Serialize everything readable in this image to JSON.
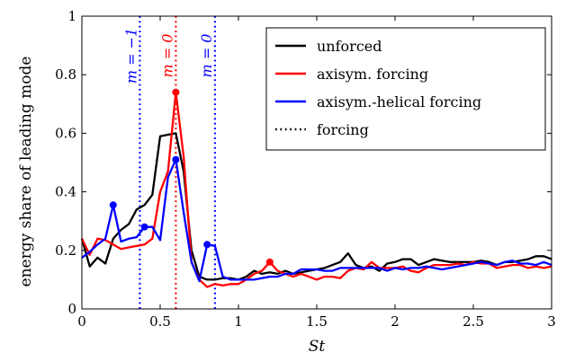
{
  "chart_data": {
    "type": "line",
    "xlabel": "St",
    "ylabel": "energy share of leading mode",
    "xlim": [
      0,
      3
    ],
    "ylim": [
      0,
      1
    ],
    "xticks": [
      0,
      0.5,
      1,
      1.5,
      2,
      2.5,
      3
    ],
    "xtick_labels": [
      "0",
      "0.5",
      "1",
      "1.5",
      "2",
      "2.5",
      "3"
    ],
    "yticks": [
      0,
      0.2,
      0.4,
      0.6,
      0.8,
      1
    ],
    "ytick_labels": [
      "0",
      "0.2",
      "0.4",
      "0.6",
      "0.8",
      "1"
    ],
    "grid": false,
    "legend_position": "top-right",
    "colors": {
      "unforced": "#000000",
      "axisym": "#ff0000",
      "helical": "#0000ff",
      "forcing_legend": "#000000"
    },
    "legend": [
      {
        "name": "unforced",
        "color": "#000000",
        "dash": "solid"
      },
      {
        "name": "axisym. forcing",
        "color": "#ff0000",
        "dash": "solid"
      },
      {
        "name": "axisym.-helical forcing",
        "color": "#0000ff",
        "dash": "solid"
      },
      {
        "name": "forcing",
        "color": "#000000",
        "dash": "dotted"
      }
    ],
    "x": [
      0,
      0.05,
      0.1,
      0.15,
      0.2,
      0.25,
      0.3,
      0.35,
      0.4,
      0.45,
      0.5,
      0.55,
      0.6,
      0.65,
      0.7,
      0.75,
      0.8,
      0.85,
      0.9,
      0.95,
      1,
      1.05,
      1.1,
      1.15,
      1.2,
      1.25,
      1.3,
      1.35,
      1.4,
      1.45,
      1.5,
      1.55,
      1.6,
      1.65,
      1.7,
      1.75,
      1.8,
      1.85,
      1.9,
      1.95,
      2,
      2.05,
      2.1,
      2.15,
      2.2,
      2.25,
      2.3,
      2.35,
      2.4,
      2.45,
      2.5,
      2.55,
      2.6,
      2.65,
      2.7,
      2.75,
      2.8,
      2.85,
      2.9,
      2.95,
      3
    ],
    "series": [
      {
        "name": "unforced",
        "color": "#000000",
        "values": [
          0.24,
          0.145,
          0.175,
          0.155,
          0.24,
          0.27,
          0.29,
          0.34,
          0.355,
          0.39,
          0.59,
          0.595,
          0.6,
          0.47,
          0.2,
          0.11,
          0.1,
          0.1,
          0.105,
          0.105,
          0.1,
          0.11,
          0.13,
          0.12,
          0.125,
          0.12,
          0.13,
          0.12,
          0.125,
          0.13,
          0.135,
          0.14,
          0.15,
          0.16,
          0.19,
          0.15,
          0.14,
          0.145,
          0.13,
          0.155,
          0.16,
          0.17,
          0.17,
          0.15,
          0.16,
          0.17,
          0.165,
          0.16,
          0.16,
          0.16,
          0.16,
          0.165,
          0.16,
          0.15,
          0.16,
          0.16,
          0.165,
          0.17,
          0.18,
          0.18,
          0.17
        ]
      },
      {
        "name": "axisym. forcing",
        "color": "#ff0000",
        "values": [
          0.24,
          0.185,
          0.24,
          0.235,
          0.22,
          0.205,
          0.21,
          0.215,
          0.22,
          0.24,
          0.4,
          0.47,
          0.74,
          0.52,
          0.16,
          0.1,
          0.075,
          0.085,
          0.08,
          0.085,
          0.085,
          0.1,
          0.12,
          0.13,
          0.16,
          0.13,
          0.12,
          0.11,
          0.12,
          0.11,
          0.1,
          0.11,
          0.11,
          0.105,
          0.13,
          0.14,
          0.135,
          0.16,
          0.14,
          0.14,
          0.14,
          0.145,
          0.13,
          0.125,
          0.14,
          0.15,
          0.15,
          0.15,
          0.155,
          0.15,
          0.16,
          0.155,
          0.155,
          0.14,
          0.145,
          0.15,
          0.15,
          0.14,
          0.145,
          0.14,
          0.145
        ]
      },
      {
        "name": "axisym.-helical forcing",
        "color": "#0000ff",
        "values": [
          0.175,
          0.195,
          0.22,
          0.24,
          0.355,
          0.23,
          0.24,
          0.245,
          0.28,
          0.28,
          0.235,
          0.45,
          0.51,
          0.33,
          0.16,
          0.095,
          0.22,
          0.215,
          0.11,
          0.1,
          0.1,
          0.1,
          0.1,
          0.105,
          0.11,
          0.11,
          0.12,
          0.12,
          0.135,
          0.135,
          0.135,
          0.13,
          0.13,
          0.14,
          0.14,
          0.14,
          0.14,
          0.14,
          0.14,
          0.13,
          0.14,
          0.135,
          0.14,
          0.14,
          0.145,
          0.14,
          0.135,
          0.14,
          0.145,
          0.15,
          0.155,
          0.16,
          0.155,
          0.15,
          0.16,
          0.165,
          0.155,
          0.155,
          0.15,
          0.16,
          0.15
        ]
      }
    ],
    "forcing_lines": [
      {
        "x": 0.37,
        "color": "#0000ff",
        "label": "m = −1"
      },
      {
        "x": 0.6,
        "color": "#ff0000",
        "label": "m = 0"
      },
      {
        "x": 0.85,
        "color": "#0000ff",
        "label": "m = 0"
      }
    ],
    "markers": [
      {
        "x": 0.2,
        "y": 0.355,
        "color": "#0000ff"
      },
      {
        "x": 0.4,
        "y": 0.28,
        "color": "#0000ff"
      },
      {
        "x": 0.6,
        "y": 0.51,
        "color": "#0000ff"
      },
      {
        "x": 0.8,
        "y": 0.22,
        "color": "#0000ff"
      },
      {
        "x": 0.6,
        "y": 0.74,
        "color": "#ff0000"
      },
      {
        "x": 1.2,
        "y": 0.16,
        "color": "#ff0000"
      }
    ]
  }
}
